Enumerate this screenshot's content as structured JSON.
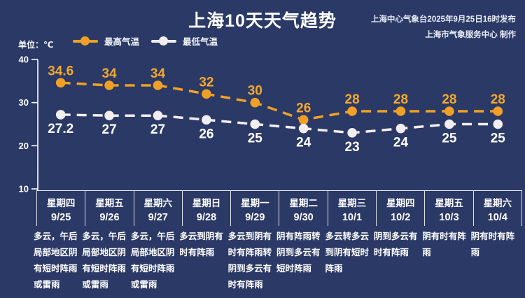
{
  "header": {
    "title": "上海10天天气趋势",
    "source_line1": "上海中心气象台2025年9月25日16时发布",
    "source_line2": "上海市气象服务中心 制作"
  },
  "legend": {
    "unit_label": "单位：℃",
    "series": [
      {
        "label": "最高气温",
        "color": "#f0a125"
      },
      {
        "label": "最低气温",
        "color": "#f2edf0"
      }
    ]
  },
  "chart_data": {
    "type": "line",
    "title": "上海10天天气趋势",
    "categories": [
      "9/25",
      "9/26",
      "9/27",
      "9/28",
      "9/29",
      "9/30",
      "10/1",
      "10/2",
      "10/3",
      "10/4"
    ],
    "weekdays": [
      "星期四",
      "星期五",
      "星期六",
      "星期日",
      "星期一",
      "星期二",
      "星期三",
      "星期四",
      "星期五",
      "星期六"
    ],
    "series": [
      {
        "name": "最高气温",
        "color": "#f0a125",
        "label_color": "#f5a92d",
        "values": [
          34.6,
          34,
          34,
          32,
          30,
          26,
          28,
          28,
          28,
          28
        ]
      },
      {
        "name": "最低气温",
        "color": "#f2edf0",
        "label_color": "#ffffff",
        "values": [
          27.2,
          27,
          27,
          26,
          25,
          24,
          23,
          24,
          25,
          25
        ]
      }
    ],
    "ylabel": "单位：℃",
    "xlabel": "",
    "ylim": [
      10,
      40
    ],
    "yticks": [
      40,
      30,
      20,
      10
    ],
    "grid": false,
    "line_style": "dashed",
    "legend_position": "top"
  },
  "days": [
    {
      "weekday": "星期四",
      "date": "9/25",
      "weather": "多云，午后局部地区阴有短时阵雨或雷雨"
    },
    {
      "weekday": "星期五",
      "date": "9/26",
      "weather": "多云，午后局部地区阴有短时阵雨或雷雨"
    },
    {
      "weekday": "星期六",
      "date": "9/27",
      "weather": "多云，午后局部地区阴有短时阵雨或雷雨"
    },
    {
      "weekday": "星期日",
      "date": "9/28",
      "weather": "多云到阴有时有阵雨"
    },
    {
      "weekday": "星期一",
      "date": "9/29",
      "weather": "多云到阴有时有阵雨转阴到多云有时有阵雨"
    },
    {
      "weekday": "星期二",
      "date": "9/30",
      "weather": "阴有阵雨转阴到多云有短时阵雨"
    },
    {
      "weekday": "星期三",
      "date": "10/1",
      "weather": "多云转多云到阴有短时阵雨"
    },
    {
      "weekday": "星期四",
      "date": "10/2",
      "weather": "阴到多云有时有阵雨"
    },
    {
      "weekday": "星期五",
      "date": "10/3",
      "weather": "阴有时有阵雨"
    },
    {
      "weekday": "星期六",
      "date": "10/4",
      "weather": "阴有时有阵雨"
    }
  ],
  "colors": {
    "background": "#2b3966",
    "axis": "#ffffff",
    "max_series": "#f0a125",
    "min_series": "#f2edf0"
  }
}
